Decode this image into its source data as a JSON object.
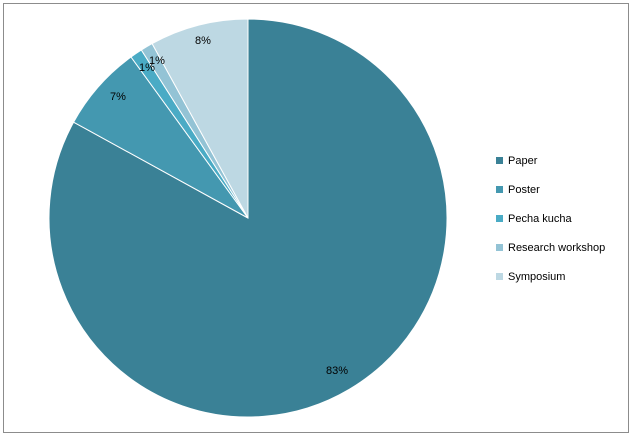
{
  "chart_data": {
    "type": "pie",
    "categories": [
      "Paper",
      "Poster",
      "Pecha kucha",
      "Research workshop",
      "Symposium"
    ],
    "values": [
      83,
      7,
      1,
      1,
      8
    ],
    "value_labels": [
      "83%",
      "7%",
      "1%",
      "1%",
      "8%"
    ],
    "colors": [
      "#3a8196",
      "#4498b0",
      "#4aabc5",
      "#93c3d5",
      "#bdd8e3"
    ],
    "start_angle": "12 o'clock",
    "direction": "clockwise",
    "legend_position": "right"
  }
}
